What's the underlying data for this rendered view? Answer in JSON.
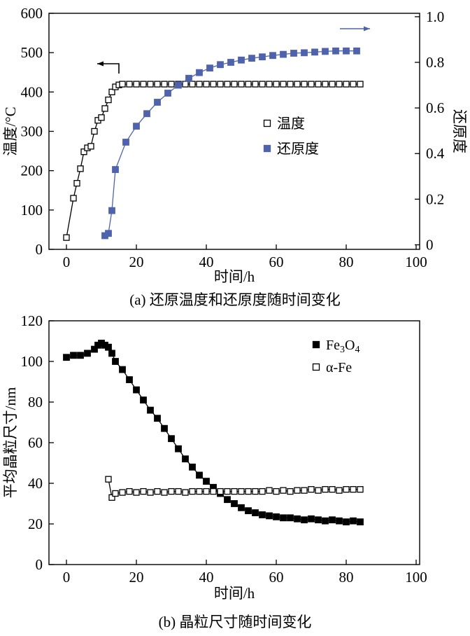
{
  "figure": {
    "caption_a": "(a) 还原温度和还原度随时间变化",
    "caption_b": "(b) 晶粒尺寸随时间变化"
  },
  "colors": {
    "accent_blue": "#4f63ad",
    "black": "#000000"
  },
  "chart_data": [
    {
      "id": "a",
      "type": "line",
      "xlabel": "时间/h",
      "ylabel_left": "温度/°C",
      "ylabel_right": "还原度",
      "xlim": [
        -5,
        101
      ],
      "ylim_left": [
        0,
        600
      ],
      "ylim_right": [
        -0.02,
        1.015
      ],
      "xticks": [
        [
          0,
          "0"
        ],
        [
          20,
          "20"
        ],
        [
          40,
          "40"
        ],
        [
          60,
          "60"
        ],
        [
          80,
          "80"
        ],
        [
          100,
          "100"
        ]
      ],
      "yticks_left": [
        [
          0,
          "0"
        ],
        [
          100,
          "100"
        ],
        [
          200,
          "200"
        ],
        [
          300,
          "300"
        ],
        [
          400,
          "400"
        ],
        [
          500,
          "500"
        ],
        [
          600,
          "600"
        ]
      ],
      "yticks_right": [
        [
          0,
          "0"
        ],
        [
          0.2,
          "0.2"
        ],
        [
          0.4,
          "0.4"
        ],
        [
          0.6,
          "0.6"
        ],
        [
          0.8,
          "0.8"
        ],
        [
          1.0,
          "1.0"
        ]
      ],
      "legend": [
        {
          "key": "temperature",
          "label": "温度",
          "marker": "open-square",
          "color": "#000000"
        },
        {
          "key": "reduction",
          "label": "还原度",
          "marker": "filled-square",
          "color": "#4f63ad"
        }
      ],
      "series": [
        {
          "key": "temperature",
          "name": "温度",
          "axis": "left",
          "marker": "open-square",
          "color": "#000000",
          "points": [
            [
              0,
              30
            ],
            [
              2,
              130
            ],
            [
              3,
              168
            ],
            [
              4,
              205
            ],
            [
              5,
              248
            ],
            [
              6,
              258
            ],
            [
              7,
              262
            ],
            [
              8,
              300
            ],
            [
              9,
              328
            ],
            [
              10,
              335
            ],
            [
              11,
              358
            ],
            [
              12,
              380
            ],
            [
              13,
              400
            ],
            [
              14,
              413
            ],
            [
              15,
              418
            ],
            [
              16,
              420
            ],
            [
              18,
              420
            ],
            [
              20,
              420
            ],
            [
              22,
              420
            ],
            [
              24,
              420
            ],
            [
              26,
              420
            ],
            [
              28,
              420
            ],
            [
              30,
              420
            ],
            [
              32,
              420
            ],
            [
              34,
              420
            ],
            [
              36,
              420
            ],
            [
              38,
              420
            ],
            [
              40,
              420
            ],
            [
              42,
              420
            ],
            [
              44,
              420
            ],
            [
              46,
              420
            ],
            [
              48,
              420
            ],
            [
              50,
              420
            ],
            [
              52,
              420
            ],
            [
              54,
              420
            ],
            [
              56,
              420
            ],
            [
              58,
              420
            ],
            [
              60,
              420
            ],
            [
              62,
              420
            ],
            [
              64,
              420
            ],
            [
              66,
              420
            ],
            [
              68,
              420
            ],
            [
              70,
              420
            ],
            [
              72,
              420
            ],
            [
              74,
              420
            ],
            [
              76,
              420
            ],
            [
              78,
              420
            ],
            [
              80,
              420
            ],
            [
              82,
              420
            ],
            [
              84,
              420
            ]
          ]
        },
        {
          "key": "reduction",
          "name": "还原度",
          "axis": "right",
          "marker": "filled-square",
          "color": "#4f63ad",
          "points": [
            [
              11,
              0.04
            ],
            [
              12,
              0.05
            ],
            [
              13,
              0.15
            ],
            [
              14,
              0.33
            ],
            [
              17,
              0.45
            ],
            [
              20,
              0.52
            ],
            [
              23,
              0.575
            ],
            [
              26,
              0.625
            ],
            [
              29,
              0.665
            ],
            [
              32,
              0.7
            ],
            [
              35,
              0.73
            ],
            [
              38,
              0.755
            ],
            [
              41,
              0.775
            ],
            [
              44,
              0.79
            ],
            [
              47,
              0.8
            ],
            [
              50,
              0.81
            ],
            [
              53,
              0.818
            ],
            [
              56,
              0.824
            ],
            [
              59,
              0.83
            ],
            [
              62,
              0.835
            ],
            [
              65,
              0.84
            ],
            [
              68,
              0.842
            ],
            [
              71,
              0.845
            ],
            [
              74,
              0.848
            ],
            [
              77,
              0.85
            ],
            [
              80,
              0.85
            ],
            [
              83,
              0.85
            ]
          ]
        }
      ]
    },
    {
      "id": "b",
      "type": "line",
      "xlabel": "时间/h",
      "ylabel_left": "平均晶粒尺寸/nm",
      "xlim": [
        -5,
        101
      ],
      "ylim_left": [
        0,
        120
      ],
      "xticks": [
        [
          0,
          "0"
        ],
        [
          20,
          "20"
        ],
        [
          40,
          "40"
        ],
        [
          60,
          "60"
        ],
        [
          80,
          "80"
        ],
        [
          100,
          "100"
        ]
      ],
      "yticks_left": [
        [
          0,
          "0"
        ],
        [
          20,
          "20"
        ],
        [
          40,
          "40"
        ],
        [
          60,
          "60"
        ],
        [
          80,
          "80"
        ],
        [
          100,
          "100"
        ],
        [
          120,
          "120"
        ]
      ],
      "legend": [
        {
          "key": "fe3o4",
          "label": "Fe3O4",
          "label_parts": [
            [
              "Fe",
              false
            ],
            [
              "3",
              true
            ],
            [
              "O",
              false
            ],
            [
              "4",
              true
            ]
          ],
          "marker": "filled-square",
          "color": "#000000"
        },
        {
          "key": "alpha-fe",
          "label": "α-Fe",
          "marker": "open-square",
          "color": "#000000"
        }
      ],
      "series": [
        {
          "key": "fe3o4",
          "name": "Fe3O4",
          "axis": "left",
          "marker": "filled-square",
          "color": "#000000",
          "points": [
            [
              0,
              102
            ],
            [
              2,
              103
            ],
            [
              4,
              103
            ],
            [
              6,
              104
            ],
            [
              8,
              106
            ],
            [
              9,
              108
            ],
            [
              10,
              109
            ],
            [
              11,
              108
            ],
            [
              12,
              107
            ],
            [
              13,
              104
            ],
            [
              14,
              100
            ],
            [
              16,
              96
            ],
            [
              18,
              91
            ],
            [
              20,
              86
            ],
            [
              22,
              81
            ],
            [
              24,
              76
            ],
            [
              26,
              72
            ],
            [
              28,
              67
            ],
            [
              30,
              62
            ],
            [
              32,
              57
            ],
            [
              34,
              52
            ],
            [
              36,
              48
            ],
            [
              38,
              44
            ],
            [
              40,
              41
            ],
            [
              42,
              38
            ],
            [
              44,
              35
            ],
            [
              46,
              32
            ],
            [
              48,
              30
            ],
            [
              50,
              28
            ],
            [
              52,
              26.5
            ],
            [
              54,
              25.5
            ],
            [
              56,
              24.5
            ],
            [
              58,
              24
            ],
            [
              60,
              23.5
            ],
            [
              62,
              23
            ],
            [
              64,
              23
            ],
            [
              66,
              22.5
            ],
            [
              68,
              22
            ],
            [
              70,
              22.5
            ],
            [
              72,
              22
            ],
            [
              74,
              21.5
            ],
            [
              76,
              22
            ],
            [
              78,
              21.5
            ],
            [
              80,
              21
            ],
            [
              82,
              21.5
            ],
            [
              84,
              21
            ]
          ]
        },
        {
          "key": "alpha-fe",
          "name": "α-Fe",
          "axis": "left",
          "marker": "open-square",
          "color": "#000000",
          "points": [
            [
              12,
              42
            ],
            [
              13,
              33
            ],
            [
              14,
              35
            ],
            [
              16,
              35.5
            ],
            [
              18,
              36
            ],
            [
              20,
              35.5
            ],
            [
              22,
              36
            ],
            [
              24,
              35.5
            ],
            [
              26,
              36
            ],
            [
              28,
              35.5
            ],
            [
              30,
              36
            ],
            [
              32,
              36
            ],
            [
              34,
              35.5
            ],
            [
              36,
              36
            ],
            [
              38,
              36
            ],
            [
              40,
              36
            ],
            [
              42,
              36
            ],
            [
              44,
              36
            ],
            [
              46,
              36
            ],
            [
              48,
              36
            ],
            [
              50,
              36
            ],
            [
              52,
              36
            ],
            [
              54,
              36
            ],
            [
              56,
              36
            ],
            [
              58,
              36.5
            ],
            [
              60,
              36
            ],
            [
              62,
              36.5
            ],
            [
              64,
              36
            ],
            [
              66,
              36.5
            ],
            [
              68,
              36.5
            ],
            [
              70,
              37
            ],
            [
              72,
              36.5
            ],
            [
              74,
              37
            ],
            [
              76,
              37
            ],
            [
              78,
              36.5
            ],
            [
              80,
              37
            ],
            [
              82,
              37
            ],
            [
              84,
              37
            ]
          ]
        }
      ]
    }
  ]
}
